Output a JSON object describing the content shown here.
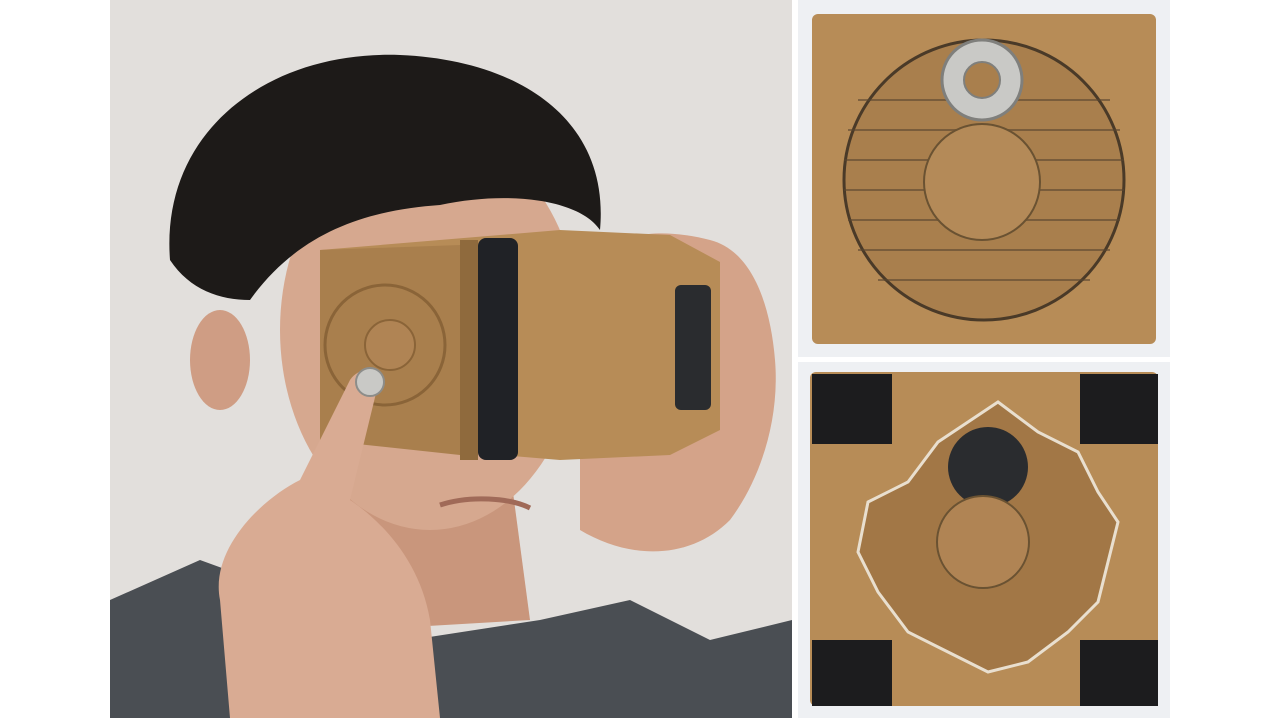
{
  "figure": {
    "panels": [
      {
        "subject": "person-wearing-cardboard-vr-viewer"
      },
      {
        "subject": "cardboard-side-panel-with-ring-magnet"
      },
      {
        "subject": "cardboard-side-panel-with-disc-magnet-and-velcro"
      }
    ]
  },
  "colors": {
    "background": "#ffffff",
    "wall": "#e2dfdc",
    "cardboard": "#b78c57",
    "cardboard_dark": "#8a6438",
    "skin": "#d6a88f",
    "hair": "#1d1a18",
    "shirt": "#4a4e53",
    "phone": "#202226",
    "magnet_metal": "#c9c9c6",
    "magnet_dark": "#2a2c2f",
    "velcro": "#1c1c1e"
  }
}
